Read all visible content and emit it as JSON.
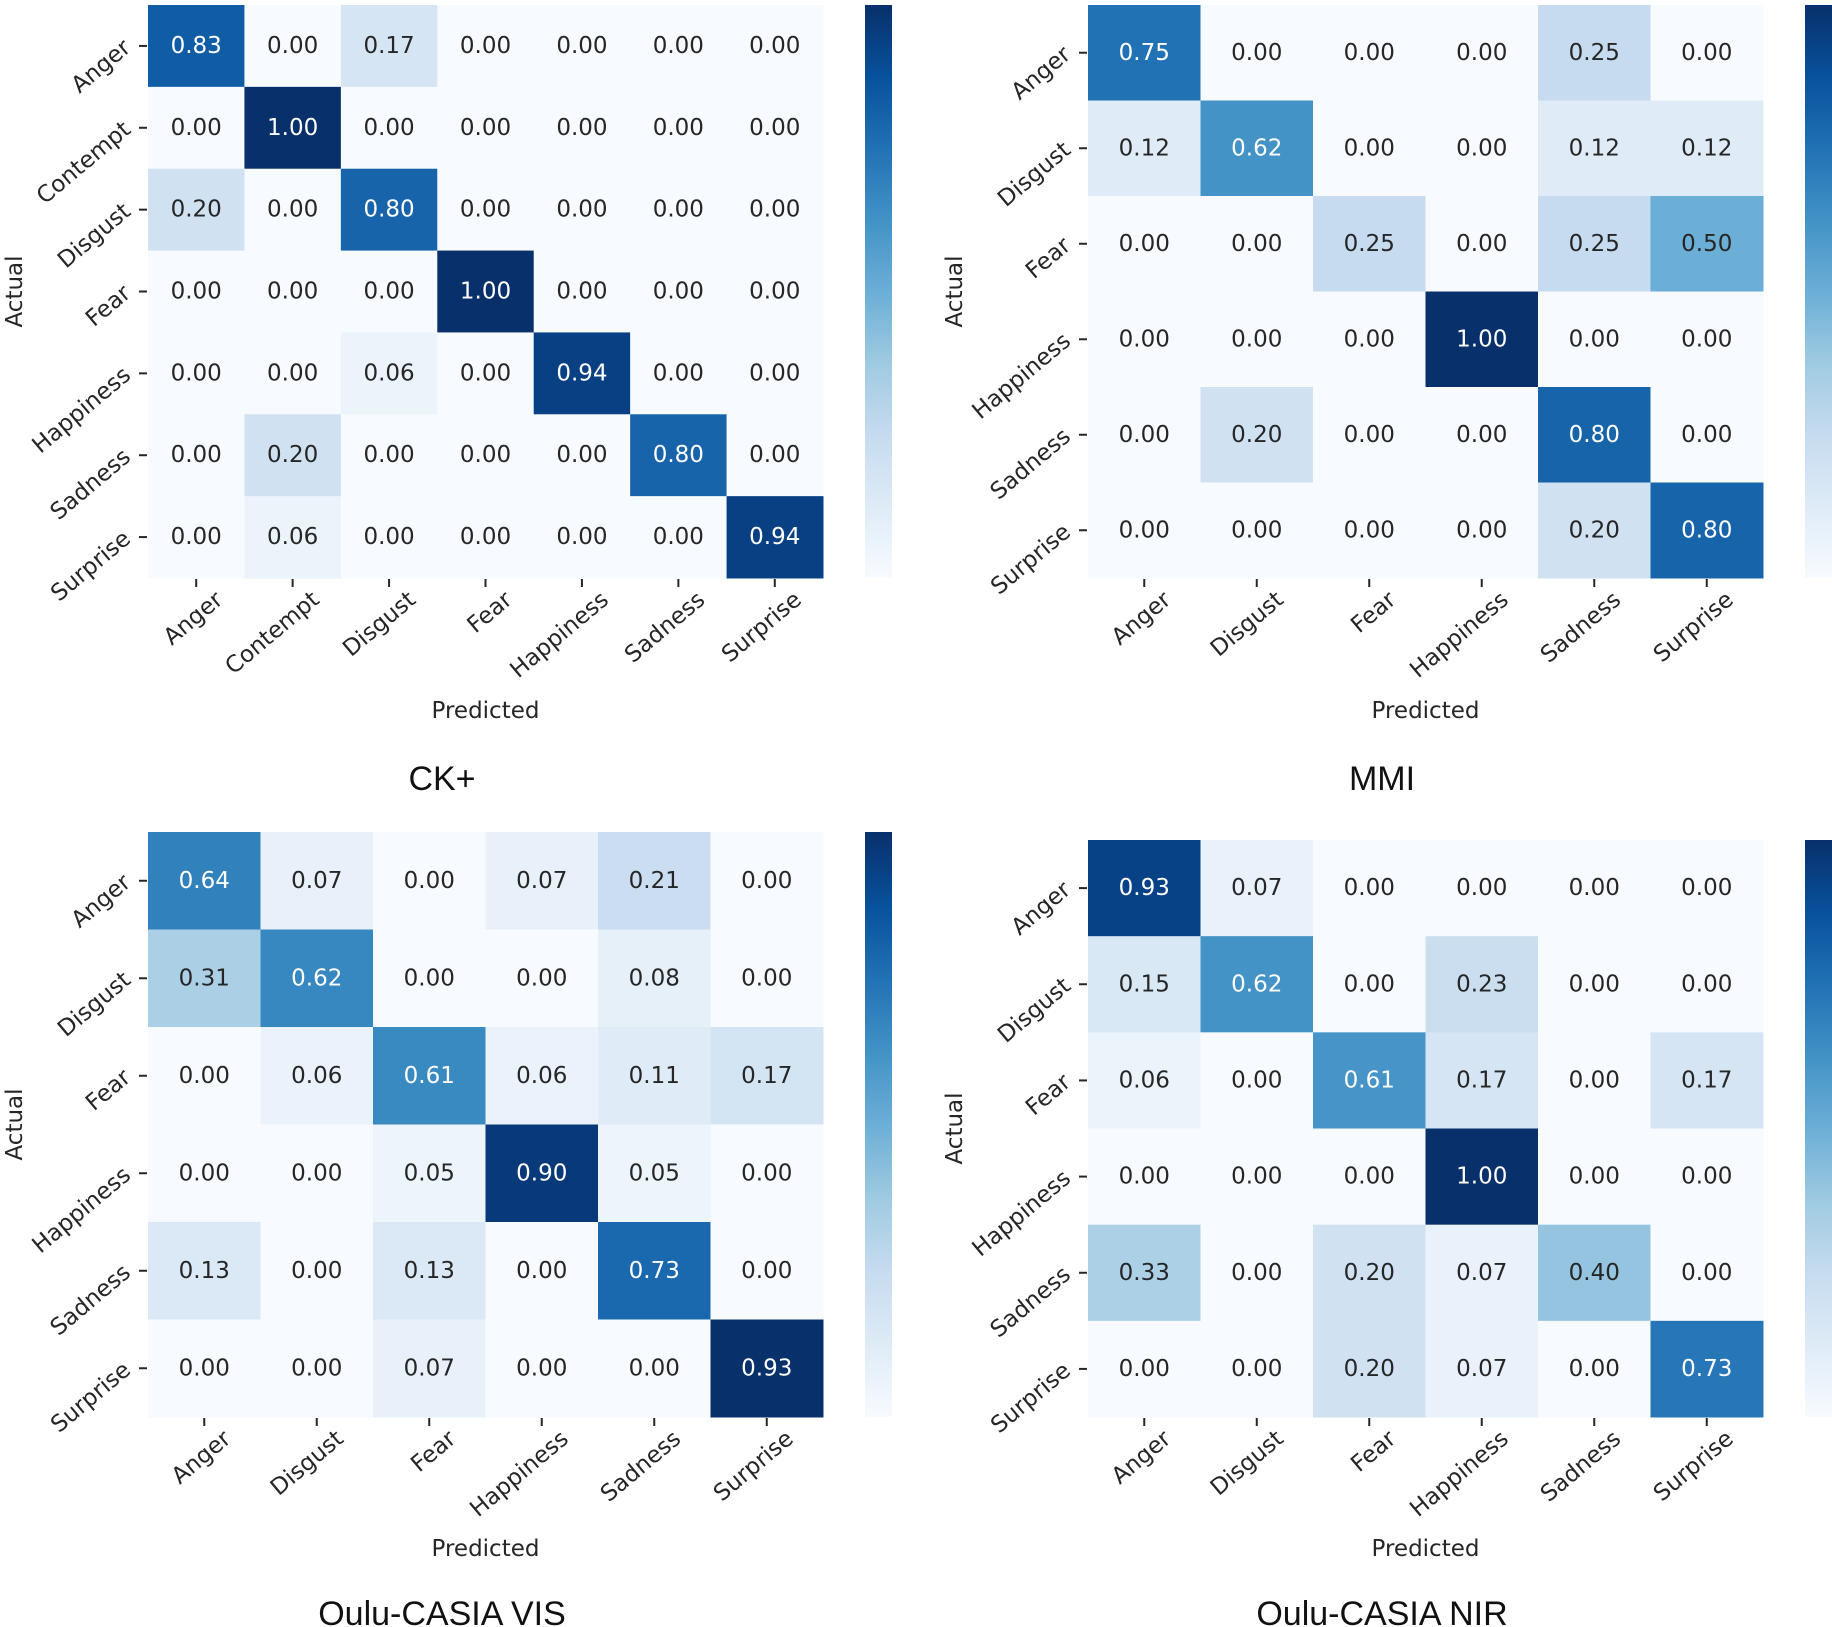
{
  "chart_data": [
    {
      "type": "heatmap",
      "title": "CK+",
      "xlabel": "Predicted",
      "ylabel": "Actual",
      "categories": [
        "Anger",
        "Contempt",
        "Disgust",
        "Fear",
        "Happiness",
        "Sadness",
        "Surprise"
      ],
      "values": [
        [
          "0.83",
          "0.00",
          "0.17",
          "0.00",
          "0.00",
          "0.00",
          "0.00"
        ],
        [
          "0.00",
          "1.00",
          "0.00",
          "0.00",
          "0.00",
          "0.00",
          "0.00"
        ],
        [
          "0.20",
          "0.00",
          "0.80",
          "0.00",
          "0.00",
          "0.00",
          "0.00"
        ],
        [
          "0.00",
          "0.00",
          "0.00",
          "1.00",
          "0.00",
          "0.00",
          "0.00"
        ],
        [
          "0.00",
          "0.00",
          "0.06",
          "0.00",
          "0.94",
          "0.00",
          "0.00"
        ],
        [
          "0.00",
          "0.20",
          "0.00",
          "0.00",
          "0.00",
          "0.80",
          "0.00"
        ],
        [
          "0.00",
          "0.06",
          "0.00",
          "0.00",
          "0.00",
          "0.00",
          "0.94"
        ]
      ],
      "vlim": [
        0,
        1
      ],
      "colormap": "Blues"
    },
    {
      "type": "heatmap",
      "title": "MMI",
      "xlabel": "Predicted",
      "ylabel": "Actual",
      "categories": [
        "Anger",
        "Disgust",
        "Fear",
        "Happiness",
        "Sadness",
        "Surprise"
      ],
      "values": [
        [
          "0.75",
          "0.00",
          "0.00",
          "0.00",
          "0.25",
          "0.00"
        ],
        [
          "0.12",
          "0.62",
          "0.00",
          "0.00",
          "0.12",
          "0.12"
        ],
        [
          "0.00",
          "0.00",
          "0.25",
          "0.00",
          "0.25",
          "0.50"
        ],
        [
          "0.00",
          "0.00",
          "0.00",
          "1.00",
          "0.00",
          "0.00"
        ],
        [
          "0.00",
          "0.20",
          "0.00",
          "0.00",
          "0.80",
          "0.00"
        ],
        [
          "0.00",
          "0.00",
          "0.00",
          "0.00",
          "0.20",
          "0.80"
        ]
      ],
      "vlim": [
        0,
        1
      ],
      "colormap": "Blues"
    },
    {
      "type": "heatmap",
      "title": "Oulu-CASIA VIS",
      "xlabel": "Predicted",
      "ylabel": "Actual",
      "categories": [
        "Anger",
        "Disgust",
        "Fear",
        "Happiness",
        "Sadness",
        "Surprise"
      ],
      "values": [
        [
          "0.64",
          "0.07",
          "0.00",
          "0.07",
          "0.21",
          "0.00"
        ],
        [
          "0.31",
          "0.62",
          "0.00",
          "0.00",
          "0.08",
          "0.00"
        ],
        [
          "0.00",
          "0.06",
          "0.61",
          "0.06",
          "0.11",
          "0.17"
        ],
        [
          "0.00",
          "0.00",
          "0.05",
          "0.90",
          "0.05",
          "0.00"
        ],
        [
          "0.13",
          "0.00",
          "0.13",
          "0.00",
          "0.73",
          "0.00"
        ],
        [
          "0.00",
          "0.00",
          "0.07",
          "0.00",
          "0.00",
          "0.93"
        ]
      ],
      "vlim": [
        0,
        0.93
      ],
      "colormap": "Blues"
    },
    {
      "type": "heatmap",
      "title": "Oulu-CASIA NIR",
      "xlabel": "Predicted",
      "ylabel": "Actual",
      "categories": [
        "Anger",
        "Disgust",
        "Fear",
        "Happiness",
        "Sadness",
        "Surprise"
      ],
      "values": [
        [
          "0.93",
          "0.07",
          "0.00",
          "0.00",
          "0.00",
          "0.00"
        ],
        [
          "0.15",
          "0.62",
          "0.00",
          "0.23",
          "0.00",
          "0.00"
        ],
        [
          "0.06",
          "0.00",
          "0.61",
          "0.17",
          "0.00",
          "0.17"
        ],
        [
          "0.00",
          "0.00",
          "0.00",
          "1.00",
          "0.00",
          "0.00"
        ],
        [
          "0.33",
          "0.00",
          "0.20",
          "0.07",
          "0.40",
          "0.00"
        ],
        [
          "0.00",
          "0.00",
          "0.20",
          "0.07",
          "0.00",
          "0.73"
        ]
      ],
      "vlim": [
        0,
        1
      ],
      "colormap": "Blues"
    }
  ]
}
